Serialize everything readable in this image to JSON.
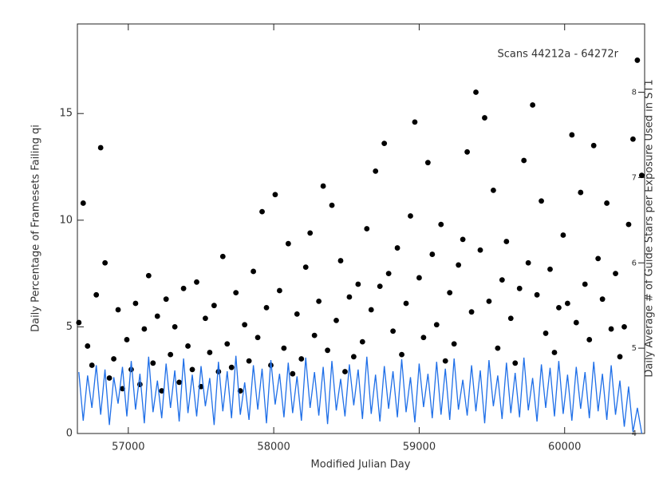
{
  "chart_data": {
    "type": "scatter",
    "annotation": "Scans 44212a - 64272r",
    "x_label": "Modified Julian Day",
    "y_label": "Daily Percentage of Framesets Failing qi",
    "y2_label": "Daily Average # of Guide Stars per Exposure Used in ST1",
    "xlim": [
      56650,
      60550
    ],
    "xticks": [
      57000,
      58000,
      59000,
      60000
    ],
    "ylim": [
      0,
      19.2
    ],
    "yticks": [
      0,
      5,
      10,
      15
    ],
    "y2lim": [
      4,
      8.8
    ],
    "y2ticks": [
      4,
      5,
      6,
      7,
      8
    ],
    "x": [
      56660,
      56690,
      56720,
      56750,
      56780,
      56810,
      56840,
      56870,
      56900,
      56930,
      56960,
      56990,
      57020,
      57050,
      57080,
      57110,
      57140,
      57170,
      57200,
      57230,
      57260,
      57290,
      57320,
      57350,
      57380,
      57410,
      57440,
      57470,
      57500,
      57530,
      57560,
      57590,
      57620,
      57650,
      57680,
      57710,
      57740,
      57770,
      57800,
      57830,
      57860,
      57890,
      57920,
      57950,
      57980,
      58010,
      58040,
      58070,
      58100,
      58130,
      58160,
      58190,
      58220,
      58250,
      58280,
      58310,
      58340,
      58370,
      58400,
      58430,
      58460,
      58490,
      58520,
      58550,
      58580,
      58610,
      58640,
      58670,
      58700,
      58730,
      58760,
      58790,
      58820,
      58850,
      58880,
      58910,
      58940,
      58970,
      59000,
      59030,
      59060,
      59090,
      59120,
      59150,
      59180,
      59210,
      59240,
      59270,
      59300,
      59330,
      59360,
      59390,
      59420,
      59450,
      59480,
      59510,
      59540,
      59570,
      59600,
      59630,
      59660,
      59690,
      59720,
      59750,
      59780,
      59810,
      59840,
      59870,
      59900,
      59930,
      59960,
      59990,
      60020,
      60050,
      60080,
      60110,
      60140,
      60170,
      60200,
      60230,
      60260,
      60290,
      60320,
      60350,
      60380,
      60410,
      60440,
      60470,
      60500,
      60530
    ],
    "series": [
      {
        "color": "#000000",
        "values": [
          5.2,
          10.8,
          4.1,
          3.2,
          6.5,
          13.4,
          8.0,
          2.6,
          3.5,
          5.8,
          2.1,
          4.4,
          3.0,
          6.1,
          2.3,
          4.9,
          7.4,
          3.3,
          5.5,
          2.0,
          6.3,
          3.7,
          5.0,
          2.4,
          6.8,
          4.1,
          3.0,
          7.1,
          2.2,
          5.4,
          3.8,
          6.0,
          2.9,
          8.3,
          4.2,
          3.1,
          6.6,
          2.0,
          5.1,
          3.4,
          7.6,
          4.5,
          10.4,
          5.9,
          3.2,
          11.2,
          6.7,
          4.0,
          8.9,
          2.8,
          5.6,
          3.5,
          7.8,
          9.4,
          4.6,
          6.2,
          11.6,
          3.9,
          10.7,
          5.3,
          8.1,
          2.9,
          6.4,
          3.6,
          7.0,
          4.3,
          9.6,
          5.8,
          12.3,
          6.9,
          13.6,
          7.5,
          4.8,
          8.7,
          3.7,
          6.1,
          10.2,
          14.6,
          7.3,
          4.5,
          12.7,
          8.4,
          5.1,
          9.8,
          3.4,
          6.6,
          4.2,
          7.9,
          9.1,
          13.2,
          5.7,
          16.0,
          8.6,
          14.8,
          6.2,
          11.4,
          4.0,
          7.2,
          9.0,
          5.4,
          3.3,
          6.8,
          12.8,
          8.0,
          15.4,
          6.5,
          10.9,
          4.7,
          7.7,
          3.8,
          5.9,
          9.3,
          6.1,
          14.0,
          5.2,
          11.3,
          7.0,
          4.4,
          13.5,
          8.2,
          6.3,
          10.8,
          4.9,
          7.5,
          3.6,
          5.0,
          9.8,
          13.8,
          17.5,
          12.1
        ]
      },
      {
        "color": "#1f6fe8",
        "axis": "y2",
        "values": [
          4.72,
          4.15,
          4.68,
          4.3,
          4.8,
          4.22,
          4.75,
          4.1,
          4.66,
          4.35,
          4.78,
          4.2,
          4.85,
          4.28,
          4.7,
          4.12,
          4.9,
          4.25,
          4.62,
          4.18,
          4.82,
          4.3,
          4.74,
          4.14,
          4.88,
          4.24,
          4.69,
          4.2,
          4.79,
          4.32,
          4.65,
          4.1,
          4.84,
          4.26,
          4.73,
          4.18,
          4.91,
          4.22,
          4.6,
          4.16,
          4.8,
          4.28,
          4.76,
          4.12,
          4.86,
          4.34,
          4.7,
          4.19,
          4.83,
          4.24,
          4.67,
          4.15,
          4.89,
          4.3,
          4.72,
          4.21,
          4.78,
          4.11,
          4.85,
          4.27,
          4.64,
          4.2,
          4.81,
          4.33,
          4.75,
          4.17,
          4.9,
          4.23,
          4.69,
          4.14,
          4.79,
          4.29,
          4.73,
          4.19,
          4.87,
          4.25,
          4.66,
          4.13,
          4.82,
          4.31,
          4.7,
          4.18,
          4.84,
          4.22,
          4.76,
          4.16,
          4.88,
          4.28,
          4.63,
          4.21,
          4.8,
          4.26,
          4.74,
          4.12,
          4.86,
          4.32,
          4.68,
          4.17,
          4.83,
          4.24,
          4.71,
          4.19,
          4.89,
          4.27,
          4.65,
          4.14,
          4.81,
          4.3,
          4.77,
          4.2,
          4.85,
          4.23,
          4.69,
          4.15,
          4.78,
          4.29,
          4.72,
          4.18,
          4.84,
          4.26,
          4.7,
          4.16,
          4.8,
          4.22,
          4.62,
          4.08,
          4.55,
          4.02,
          4.3,
          4.0
        ]
      }
    ]
  }
}
